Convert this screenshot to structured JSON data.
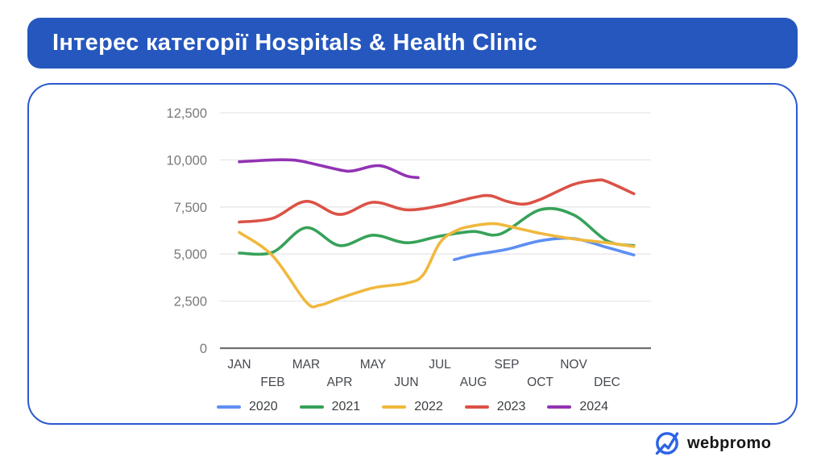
{
  "title_bar": {
    "title": "Інтерес категорії Hospitals & Health Clinic",
    "background": "#2557BE",
    "text_color": "#FFFFFF"
  },
  "card": {
    "border_color": "#2B59CE"
  },
  "chart_data": {
    "type": "line",
    "title": "Інтерес категорії Hospitals & Health Clinic",
    "xlabel": "",
    "ylabel": "",
    "x_categories": [
      "JAN",
      "FEB",
      "MAR",
      "APR",
      "MAY",
      "JUN",
      "JUL",
      "AUG",
      "SEP",
      "OCT",
      "NOV",
      "DEC"
    ],
    "x_label_layout": "staggered-two-rows",
    "ylim": [
      0,
      12500
    ],
    "y_ticks": [
      0,
      2500,
      5000,
      7500,
      10000,
      12500
    ],
    "y_tick_labels": [
      "0",
      "2,500",
      "5,000",
      "7,500",
      "10,000",
      "12,500"
    ],
    "grid": true,
    "legend_position": "bottom",
    "axis_color": "#6F6F6F",
    "grid_color": "#E7E7E7",
    "series": [
      {
        "name": "2020",
        "color": "#5E8FF2",
        "points": [
          [
            6.43,
            4700
          ],
          [
            7,
            4950
          ],
          [
            8,
            5250
          ],
          [
            9,
            5700
          ],
          [
            10,
            5820
          ],
          [
            11,
            5350
          ],
          [
            11.8,
            4950
          ]
        ]
      },
      {
        "name": "2021",
        "color": "#37A259",
        "points": [
          [
            0,
            5050
          ],
          [
            1,
            5100
          ],
          [
            2,
            6400
          ],
          [
            3,
            5450
          ],
          [
            4,
            6000
          ],
          [
            5,
            5600
          ],
          [
            6,
            5950
          ],
          [
            7,
            6200
          ],
          [
            7.8,
            6060
          ],
          [
            9,
            7350
          ],
          [
            10,
            7080
          ],
          [
            11,
            5700
          ],
          [
            11.8,
            5450
          ]
        ]
      },
      {
        "name": "2022",
        "color": "#F0B83D",
        "points": [
          [
            0,
            6150
          ],
          [
            1,
            4900
          ],
          [
            2,
            2450
          ],
          [
            2.4,
            2280
          ],
          [
            3,
            2650
          ],
          [
            4,
            3200
          ],
          [
            5,
            3450
          ],
          [
            5.5,
            3900
          ],
          [
            6,
            5600
          ],
          [
            6.5,
            6250
          ],
          [
            7,
            6500
          ],
          [
            7.6,
            6620
          ],
          [
            8,
            6500
          ],
          [
            9,
            6100
          ],
          [
            10,
            5800
          ],
          [
            11,
            5600
          ],
          [
            11.8,
            5400
          ]
        ]
      },
      {
        "name": "2023",
        "color": "#DB5246",
        "points": [
          [
            0,
            6700
          ],
          [
            1,
            6900
          ],
          [
            2,
            7800
          ],
          [
            3,
            7100
          ],
          [
            4,
            7750
          ],
          [
            5,
            7350
          ],
          [
            6,
            7570
          ],
          [
            7,
            8000
          ],
          [
            7.5,
            8100
          ],
          [
            8,
            7800
          ],
          [
            8.5,
            7650
          ],
          [
            9,
            7900
          ],
          [
            10,
            8700
          ],
          [
            10.7,
            8920
          ],
          [
            11,
            8850
          ],
          [
            11.8,
            8200
          ]
        ]
      },
      {
        "name": "2024",
        "color": "#9233B3",
        "points": [
          [
            0,
            9900
          ],
          [
            1,
            10000
          ],
          [
            1.6,
            9990
          ],
          [
            2,
            9880
          ],
          [
            3,
            9470
          ],
          [
            3.4,
            9420
          ],
          [
            4.2,
            9690
          ],
          [
            5,
            9150
          ],
          [
            5.35,
            9060
          ]
        ]
      }
    ]
  },
  "footer": {
    "logo_text": "webpromo",
    "logo_icon_color": "#2C63E6"
  }
}
